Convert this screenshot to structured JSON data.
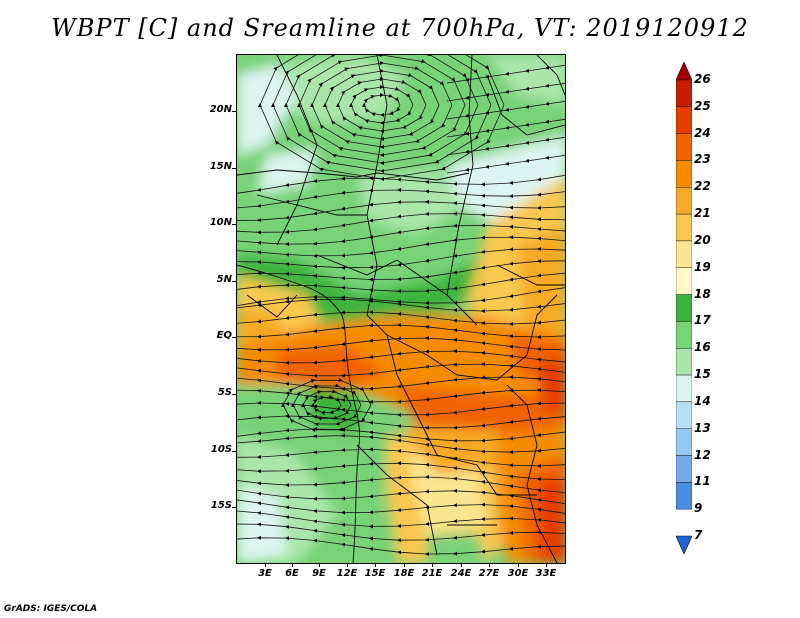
{
  "title": "WBPT [C] and Sreamline at 700hPa, VT: 2019120912",
  "footer": "GrADS: IGES/COLA",
  "lat_labels": [
    "20N",
    "15N",
    "10N",
    "5N",
    "EQ",
    "5S",
    "10S",
    "15S"
  ],
  "lon_labels": [
    "3E",
    "6E",
    "9E",
    "12E",
    "15E",
    "18E",
    "21E",
    "24E",
    "27E",
    "30E",
    "33E"
  ],
  "colorbar": {
    "levels": [
      "26",
      "25",
      "24",
      "23",
      "22",
      "21",
      "20",
      "19",
      "18",
      "17",
      "16",
      "15",
      "14",
      "13",
      "12",
      "11",
      "9",
      "7"
    ],
    "colors": [
      "#a50000",
      "#c81e00",
      "#e63c00",
      "#f06400",
      "#f58c00",
      "#f7aa28",
      "#f9c850",
      "#fae690",
      "#fffac8",
      "#3cb43c",
      "#78d278",
      "#aae6aa",
      "#dcf5f0",
      "#b4e1f5",
      "#96c8f0",
      "#78aaeb",
      "#4b8ce1",
      "#1e64d2"
    ],
    "top_arrow_color": "#a50000",
    "bottom_arrow_color": "#1e64d2"
  },
  "map": {
    "variable": "wet-bulb potential temperature",
    "overlay": "streamlines",
    "level": "700hPa"
  }
}
